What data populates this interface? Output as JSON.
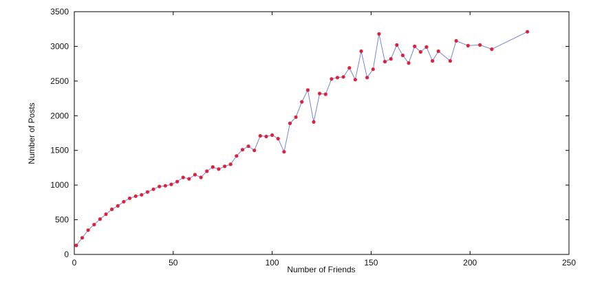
{
  "chart_data": {
    "type": "line",
    "xlabel": "Number of Friends",
    "ylabel": "Number of Posts",
    "xlim": [
      0,
      250
    ],
    "ylim": [
      0,
      3500
    ],
    "xticks": [
      0,
      50,
      100,
      150,
      200,
      250
    ],
    "yticks": [
      0,
      500,
      1000,
      1500,
      2000,
      2500,
      3000,
      3500
    ],
    "grid": false,
    "legend": "none",
    "line_color": "#6f84e0",
    "marker_color": "#e0203a",
    "series": [
      {
        "x": [
          1,
          4,
          7,
          10,
          13,
          16,
          19,
          22,
          25,
          28,
          31,
          34,
          37,
          40,
          43,
          46,
          49,
          52,
          55,
          58,
          61,
          64,
          67,
          70,
          73,
          76,
          79,
          82,
          85,
          88,
          91,
          94,
          97,
          100,
          103,
          106,
          109,
          112,
          115,
          118,
          121,
          124,
          127,
          130,
          133,
          136,
          139,
          142,
          145,
          148,
          151,
          154,
          157,
          160,
          163,
          166,
          169,
          172,
          175,
          178,
          181,
          184,
          190,
          193,
          199,
          205,
          211,
          229
        ],
        "y": [
          130,
          240,
          350,
          430,
          510,
          580,
          650,
          700,
          760,
          810,
          840,
          860,
          900,
          940,
          980,
          990,
          1010,
          1050,
          1110,
          1090,
          1150,
          1110,
          1200,
          1260,
          1230,
          1270,
          1300,
          1420,
          1510,
          1560,
          1500,
          1710,
          1700,
          1720,
          1670,
          1480,
          1890,
          1980,
          2200,
          2370,
          1910,
          2320,
          2310,
          2530,
          2550,
          2560,
          2690,
          2520,
          2930,
          2550,
          2670,
          3180,
          2780,
          2820,
          3020,
          2870,
          2760,
          3000,
          2920,
          2990,
          2790,
          2930,
          2790,
          3080,
          3010,
          3020,
          2960,
          3210
        ]
      }
    ]
  }
}
